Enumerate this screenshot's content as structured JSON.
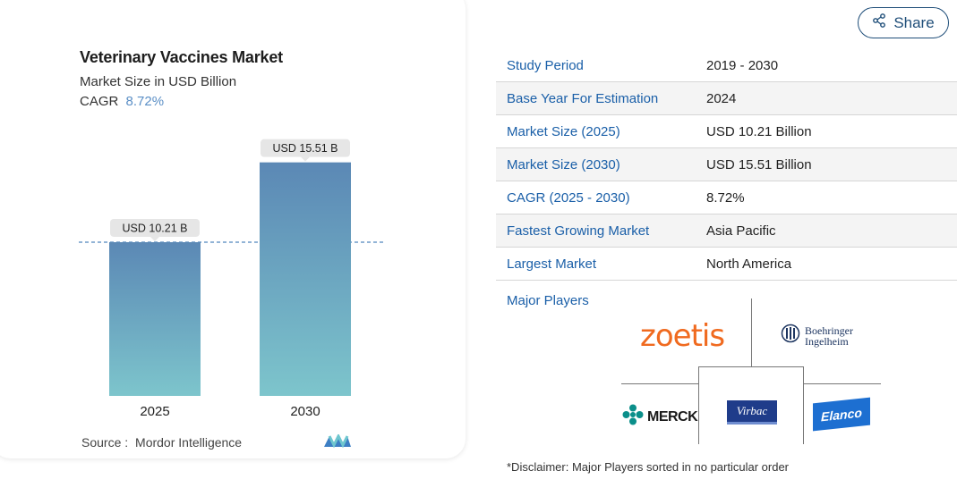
{
  "chart_data": {
    "type": "bar",
    "title": "Veterinary Vaccines Market",
    "subtitle": "Market Size in USD Billion",
    "cagr_label": "CAGR",
    "cagr_value": "8.72%",
    "categories": [
      "2025",
      "2030"
    ],
    "values": [
      10.21,
      15.51
    ],
    "value_labels": [
      "USD 10.21 B",
      "USD 15.51 B"
    ],
    "ylim": [
      0,
      16.5
    ],
    "grid": false,
    "reference_line_value": 10.21,
    "bar_colors": {
      "top": "#5b88b5",
      "bottom": "#7dc5cc"
    }
  },
  "source": {
    "label": "Source :",
    "name": "Mordor Intelligence"
  },
  "share": {
    "label": "Share",
    "icon": "share-icon"
  },
  "info_rows": [
    {
      "label": "Study Period",
      "value": "2019 - 2030"
    },
    {
      "label": "Base Year For Estimation",
      "value": "2024"
    },
    {
      "label": "Market Size (2025)",
      "value": "USD 10.21 Billion"
    },
    {
      "label": "Market Size (2030)",
      "value": "USD 15.51 Billion"
    },
    {
      "label": "CAGR (2025 - 2030)",
      "value": "8.72%"
    },
    {
      "label": "Fastest Growing Market",
      "value": "Asia Pacific"
    },
    {
      "label": "Largest Market",
      "value": "North America"
    }
  ],
  "players": {
    "title": "Major Players",
    "logos": {
      "zoetis": "zoetis",
      "boehringer_line1": "Boehringer",
      "boehringer_line2": "Ingelheim",
      "merck": "MERCK",
      "virbac": "Virbac",
      "elanco": "Elanco"
    }
  },
  "disclaimer": "*Disclaimer: Major Players sorted in no particular order",
  "colors": {
    "accent": "#1a5fa8",
    "brand_dark": "#1f4e79",
    "cagr": "#5b8fc6"
  }
}
